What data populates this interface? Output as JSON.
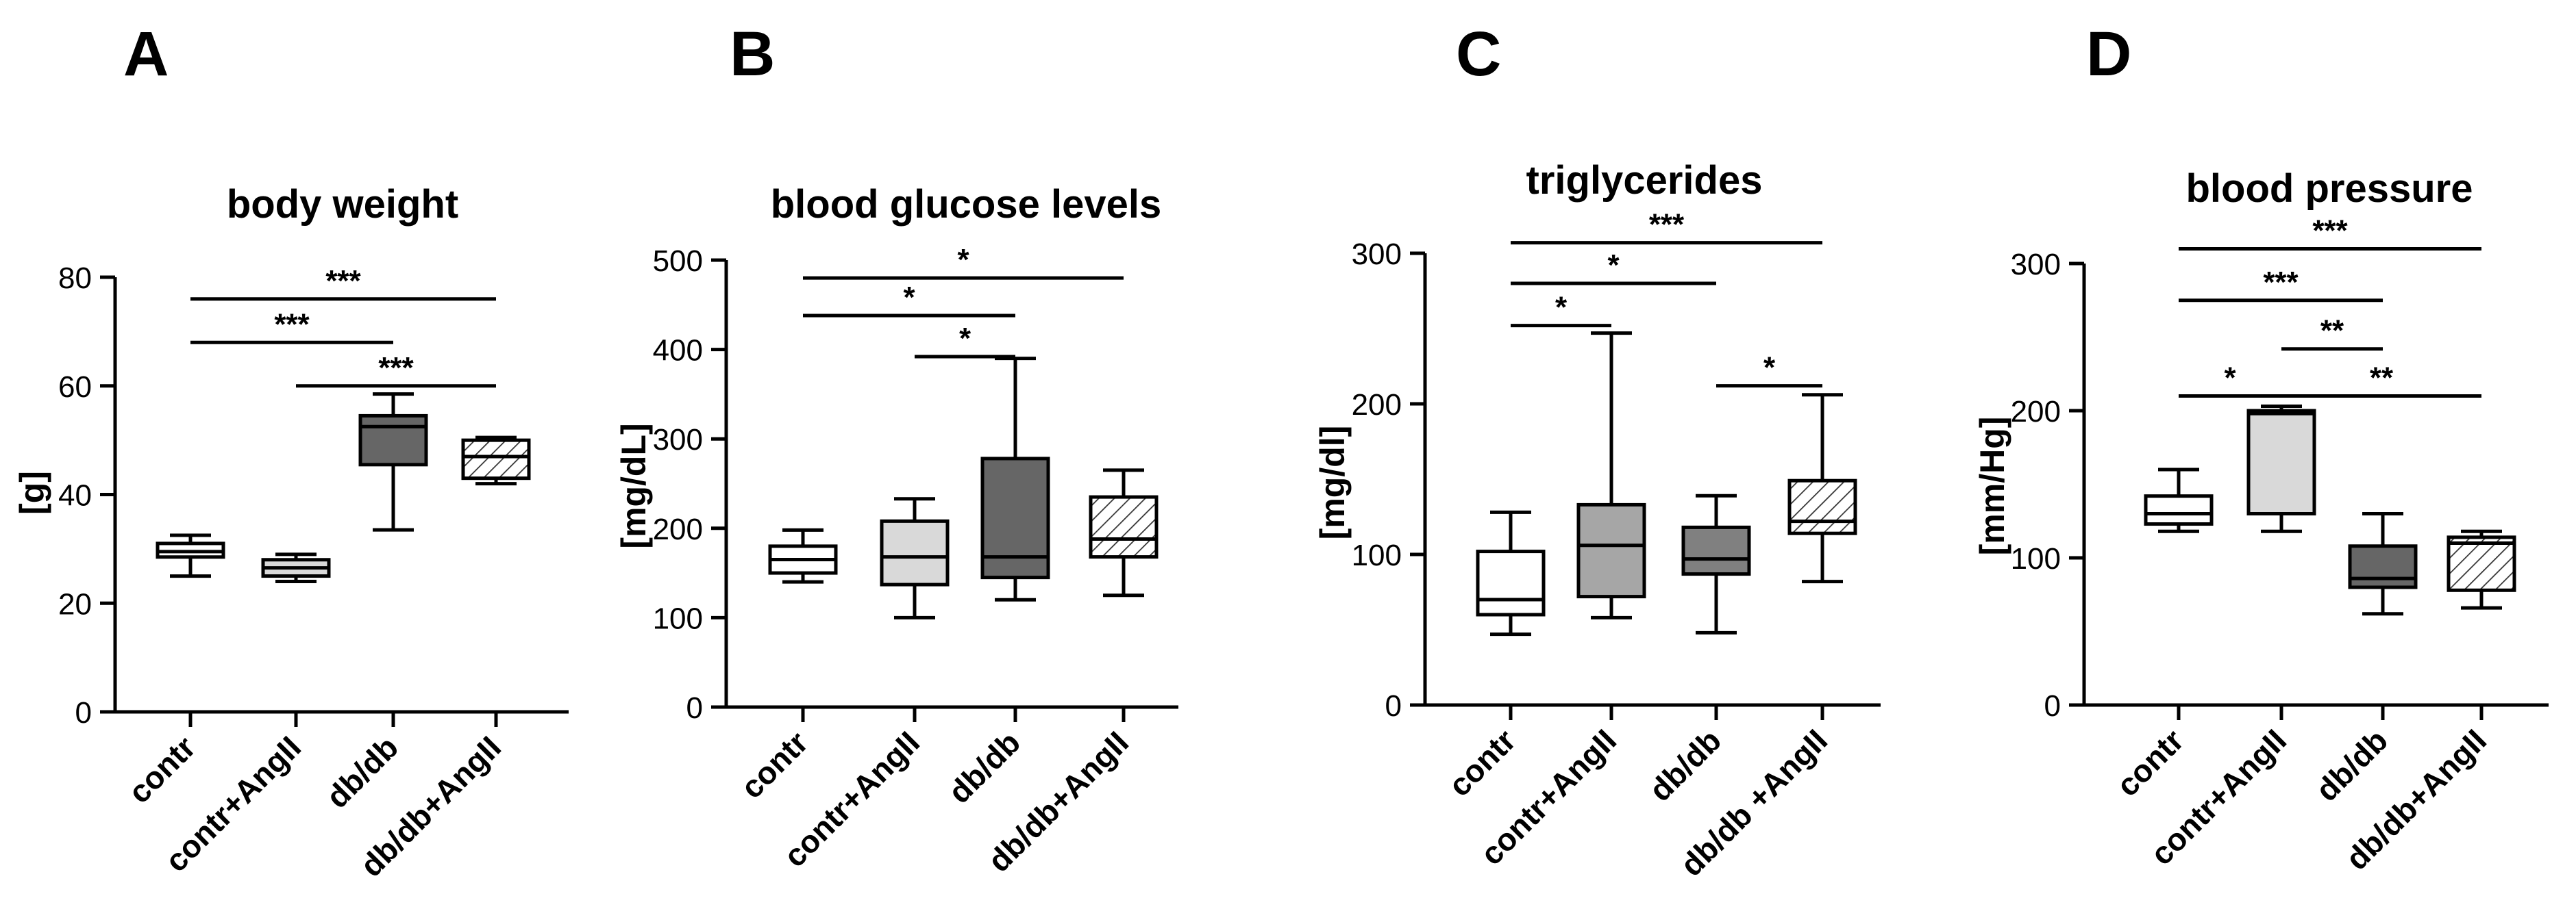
{
  "chart_data": [
    {
      "type": "box",
      "panel_label": "A",
      "title": "body weight",
      "ylabel": "[g]",
      "ylim": [
        0,
        80
      ],
      "yticks": [
        0,
        20,
        40,
        60,
        80
      ],
      "categories": [
        "contr",
        "contr+AngII",
        "db/db",
        "db/db+AngII"
      ],
      "boxes": [
        {
          "min": 25,
          "q1": 28.5,
          "median": 29.5,
          "q3": 31,
          "max": 32.5,
          "fill": "#ffffff",
          "pattern": "none"
        },
        {
          "min": 24,
          "q1": 25,
          "median": 26.5,
          "q3": 28,
          "max": 29,
          "fill": "#d9d9d9",
          "pattern": "none"
        },
        {
          "min": 33.5,
          "q1": 45.5,
          "median": 52.5,
          "q3": 54.5,
          "max": 58.5,
          "fill": "#666666",
          "pattern": "none"
        },
        {
          "min": 42,
          "q1": 43,
          "median": 47,
          "q3": 50,
          "max": 50.5,
          "fill": "#ffffff",
          "pattern": "hatch"
        }
      ],
      "significance": [
        {
          "from": 0,
          "to": 3,
          "y": 76,
          "label": "***"
        },
        {
          "from": 0,
          "to": 2,
          "y": 68,
          "label": "***"
        },
        {
          "from": 1,
          "to": 3,
          "y": 60,
          "label": "***"
        }
      ]
    },
    {
      "type": "box",
      "panel_label": "B",
      "title": "blood glucose levels",
      "ylabel": "[mg/dL]",
      "ylim": [
        0,
        500
      ],
      "yticks": [
        0,
        100,
        200,
        300,
        400,
        500
      ],
      "categories": [
        "contr",
        "contr+AngII",
        "db/db",
        "db/db+AngII"
      ],
      "boxes": [
        {
          "min": 140,
          "q1": 150,
          "median": 165,
          "q3": 180,
          "max": 198,
          "fill": "#ffffff",
          "pattern": "none"
        },
        {
          "min": 100,
          "q1": 137,
          "median": 168,
          "q3": 208,
          "max": 233,
          "fill": "#d9d9d9",
          "pattern": "none"
        },
        {
          "min": 120,
          "q1": 145,
          "median": 168,
          "q3": 278,
          "max": 390,
          "fill": "#666666",
          "pattern": "none"
        },
        {
          "min": 125,
          "q1": 168,
          "median": 188,
          "q3": 235,
          "max": 265,
          "fill": "#ffffff",
          "pattern": "hatch"
        }
      ],
      "significance": [
        {
          "from": 0,
          "to": 3,
          "y": 480,
          "label": "*"
        },
        {
          "from": 0,
          "to": 2,
          "y": 438,
          "label": "*"
        },
        {
          "from": 1,
          "to": 2,
          "y": 392,
          "label": "*"
        }
      ]
    },
    {
      "type": "box",
      "panel_label": "C",
      "title": "triglycerides",
      "ylabel": "[mg/dl]",
      "ylim": [
        0,
        300
      ],
      "yticks": [
        0,
        100,
        200,
        300
      ],
      "categories": [
        "contr",
        "contr+AngII",
        "db/db",
        "db/db +AngII"
      ],
      "boxes": [
        {
          "min": 47,
          "q1": 60,
          "median": 70,
          "q3": 102,
          "max": 128,
          "fill": "#ffffff",
          "pattern": "none"
        },
        {
          "min": 58,
          "q1": 72,
          "median": 106,
          "q3": 133,
          "max": 247,
          "fill": "#a6a6a6",
          "pattern": "none"
        },
        {
          "min": 48,
          "q1": 87,
          "median": 97,
          "q3": 118,
          "max": 139,
          "fill": "#808080",
          "pattern": "none"
        },
        {
          "min": 82,
          "q1": 114,
          "median": 122,
          "q3": 149,
          "max": 206,
          "fill": "#ffffff",
          "pattern": "hatch"
        }
      ],
      "significance": [
        {
          "from": 0,
          "to": 3,
          "y": 307,
          "label": "***"
        },
        {
          "from": 0,
          "to": 2,
          "y": 280,
          "label": "*"
        },
        {
          "from": 0,
          "to": 1,
          "y": 252,
          "label": "*"
        },
        {
          "from": 2,
          "to": 3,
          "y": 212,
          "label": "*"
        }
      ]
    },
    {
      "type": "box",
      "panel_label": "D",
      "title": "blood pressure",
      "ylabel": "[mm/Hg]",
      "ylim": [
        0,
        300
      ],
      "yticks": [
        0,
        100,
        200,
        300
      ],
      "categories": [
        "contr",
        "contr+AngII",
        "db/db",
        "db/db+AngII"
      ],
      "boxes": [
        {
          "min": 118,
          "q1": 123,
          "median": 130,
          "q3": 142,
          "max": 160,
          "fill": "#ffffff",
          "pattern": "none"
        },
        {
          "min": 118,
          "q1": 130,
          "median": 198,
          "q3": 200,
          "max": 203,
          "fill": "#d9d9d9",
          "pattern": "none"
        },
        {
          "min": 62,
          "q1": 80,
          "median": 86,
          "q3": 108,
          "max": 130,
          "fill": "#666666",
          "pattern": "none"
        },
        {
          "min": 66,
          "q1": 78,
          "median": 110,
          "q3": 114,
          "max": 118,
          "fill": "#ffffff",
          "pattern": "hatch"
        }
      ],
      "significance": [
        {
          "from": 0,
          "to": 3,
          "y": 310,
          "label": "***"
        },
        {
          "from": 0,
          "to": 2,
          "y": 275,
          "label": "***"
        },
        {
          "from": 1,
          "to": 2,
          "y": 242,
          "label": "**"
        },
        {
          "from": 0,
          "to": 1,
          "y": 210,
          "label": "*"
        },
        {
          "from": 1,
          "to": 3,
          "y": 210,
          "label": "**"
        }
      ]
    }
  ]
}
